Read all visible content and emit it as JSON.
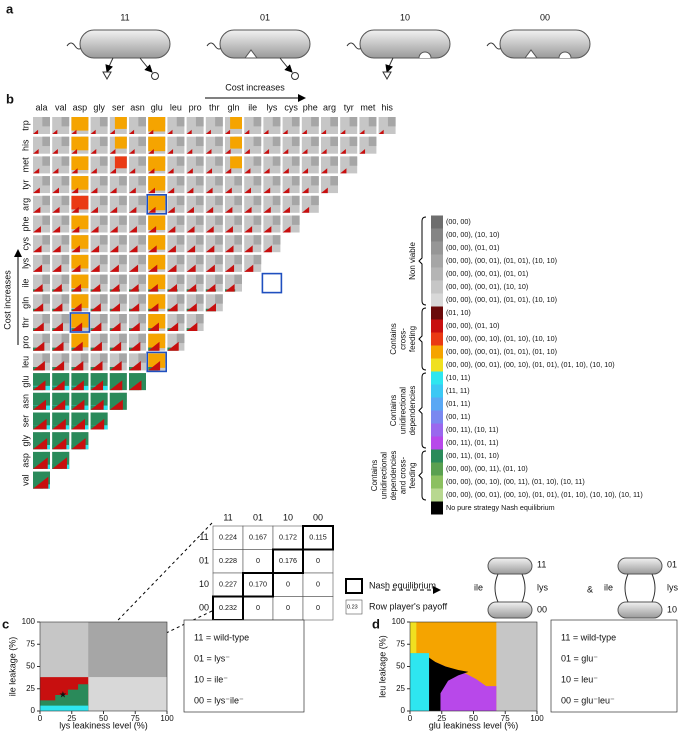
{
  "panel_a": {
    "label": "a",
    "strategies": [
      "11",
      "01",
      "10",
      "00"
    ]
  },
  "panel_b": {
    "label": "b",
    "cost_label": "Cost increases",
    "columns": [
      "ala",
      "val",
      "asp",
      "gly",
      "ser",
      "asn",
      "glu",
      "leu",
      "pro",
      "thr",
      "gln",
      "ile",
      "lys",
      "cys",
      "phe",
      "arg",
      "tyr",
      "met",
      "his"
    ],
    "rows": [
      "trp",
      "his",
      "met",
      "tyr",
      "arg",
      "phe",
      "cys",
      "lys",
      "ile",
      "gln",
      "thr",
      "pro",
      "leu",
      "glu",
      "asn",
      "ser",
      "gly",
      "asp",
      "val"
    ],
    "legend": {
      "entries": [
        {
          "label": "(00, 00)",
          "color": "#6e6e6e"
        },
        {
          "label": "(00, 00), (10, 10)",
          "color": "#858585"
        },
        {
          "label": "(00, 00), (01, 01)",
          "color": "#969696"
        },
        {
          "label": "(00, 00), (00, 01), (01, 01), (10, 10)",
          "color": "#a6a6a6"
        },
        {
          "label": "(00, 00), (00, 01), (01, 01)",
          "color": "#b5b5b5"
        },
        {
          "label": "(00, 00), (00, 01), (10, 10)",
          "color": "#c6c6c6"
        },
        {
          "label": "(00, 00), (00, 01), (01, 01), (10, 10)",
          "color": "#d8d8d8"
        },
        {
          "label": "(01, 10)",
          "color": "#6b0a0a"
        },
        {
          "label": "(00, 00), (01, 10)",
          "color": "#c80f0f"
        },
        {
          "label": "(00, 00), (00, 10), (01, 10), (10, 10)",
          "color": "#ea3a14"
        },
        {
          "label": "(00, 00), (00, 01), (01, 01), (01, 10)",
          "color": "#f5a400"
        },
        {
          "label": "(00, 00), (00, 01), (00, 10), (01, 01), (01, 10), (10, 10)",
          "color": "#f0e020"
        },
        {
          "label": "(10, 11)",
          "color": "#2ee6f0"
        },
        {
          "label": "(11, 11)",
          "color": "#3cc8f4"
        },
        {
          "label": "(01, 11)",
          "color": "#5aa8f4"
        },
        {
          "label": "(00, 11)",
          "color": "#7a88f0"
        },
        {
          "label": "(00, 11), (10, 11)",
          "color": "#9a68ee"
        },
        {
          "label": "(00, 11), (01, 11)",
          "color": "#b848ea"
        },
        {
          "label": "(00, 11), (01, 10)",
          "color": "#2a8a5a"
        },
        {
          "label": "(00, 00), (00, 11), (01, 10)",
          "color": "#5aa050"
        },
        {
          "label": "(00, 00), (00, 10), (00, 11), (01, 10), (10, 11)",
          "color": "#8cc060"
        },
        {
          "label": "(00, 00), (00, 01), (00, 10), (01, 01), (01, 10), (10, 10), (10, 11)",
          "color": "#b8d890"
        },
        {
          "label": "No pure strategy Nash equilibrium",
          "color": "#000000"
        }
      ],
      "groups": [
        {
          "lines": [
            "Non viable"
          ]
        },
        {
          "lines": [
            "Contains",
            "cross-",
            "feeding"
          ]
        },
        {
          "lines": [
            "Contains",
            "unidirectional",
            "dependencies"
          ]
        },
        {
          "lines": [
            "Contains",
            "unidirectional",
            "dependencies",
            "and cross-",
            "feeding"
          ]
        }
      ]
    },
    "payoff": {
      "strategies": [
        "11",
        "01",
        "10",
        "00"
      ],
      "rows": [
        [
          {
            "text": "0.224",
            "nash": false
          },
          {
            "text": "0.167",
            "nash": false
          },
          {
            "text": "0.172",
            "nash": false
          },
          {
            "text": "0.115",
            "nash": true
          }
        ],
        [
          {
            "text": "0.228",
            "nash": false
          },
          {
            "text": "0",
            "nash": false
          },
          {
            "text": "0.176",
            "nash": true
          },
          {
            "text": "0",
            "nash": false
          }
        ],
        [
          {
            "text": "0.227",
            "nash": false
          },
          {
            "text": "0.170",
            "nash": true
          },
          {
            "text": "0",
            "nash": false
          },
          {
            "text": "0",
            "nash": false
          }
        ],
        [
          {
            "text": "0.232",
            "nash": true
          },
          {
            "text": "0",
            "nash": false
          },
          {
            "text": "0",
            "nash": false
          },
          {
            "text": "0",
            "nash": false
          }
        ]
      ],
      "nash_label": "Nash equilibrium",
      "payoff_label": "Row player's payoff",
      "payoff_sample": "0.23"
    },
    "diagram": {
      "pair1": {
        "left": "ile",
        "right": "lys",
        "top": "11",
        "bottom": "00"
      },
      "amp": "&",
      "pair2": {
        "left": "ile",
        "right": "lys",
        "top": "01",
        "bottom": "10"
      }
    }
  },
  "panel_c": {
    "label": "c",
    "ylabel": "ile leakage (%)",
    "xlabel": "lys leakiness level (%)",
    "xticks": [
      0,
      25,
      50,
      75,
      100
    ],
    "yticks": [
      0,
      25,
      50,
      75,
      100
    ],
    "legend": [
      "11 = wild-type",
      "01 = lys⁻",
      "10 = ile⁻",
      "00 = lys⁻ile⁻"
    ]
  },
  "panel_d": {
    "label": "d",
    "ylabel": "leu leakage (%)",
    "xlabel": "glu leakiness level (%)",
    "xticks": [
      0,
      25,
      50,
      75,
      100
    ],
    "yticks": [
      0,
      25,
      50,
      75,
      100
    ],
    "legend": [
      "11 = wild-type",
      "01 = glu⁻",
      "10 = leu⁻",
      "00 = glu⁻leu⁻"
    ]
  }
}
